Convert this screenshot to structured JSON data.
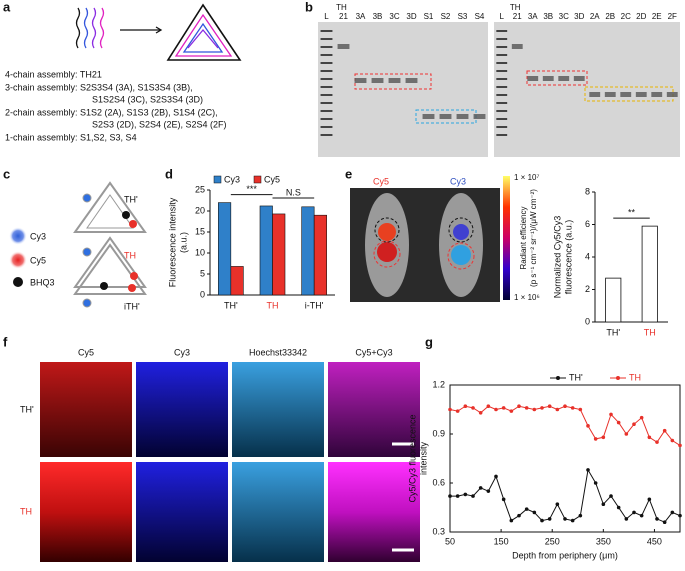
{
  "panel_labels": [
    "a",
    "b",
    "c",
    "d",
    "e",
    "f",
    "g"
  ],
  "panel_a": {
    "lines": [
      "4-chain assembly: TH21",
      "3-chain assembly: S2S3S4 (3A), S1S3S4 (3B),",
      "S1S2S4 (3C), S2S3S4 (3D)",
      "2-chain assembly: S1S2 (2A), S1S3 (2B), S1S4 (2C),",
      "S2S3 (2D), S2S4 (2E), S2S4 (2F)",
      "1-chain assembly: S1,S2, S3, S4"
    ]
  },
  "panel_b": {
    "left_gel": {
      "header": "TH",
      "lanes": [
        "L",
        "21",
        "3A",
        "3B",
        "3C",
        "3D",
        "S1",
        "S2",
        "S3",
        "S4"
      ]
    },
    "right_gel": {
      "header": "TH",
      "lanes": [
        "L",
        "21",
        "3A",
        "3B",
        "3C",
        "3D",
        "2A",
        "2B",
        "2C",
        "2D",
        "2E",
        "2F"
      ]
    }
  },
  "panel_c": {
    "labels": [
      "TH'",
      "TH",
      "iTH'"
    ],
    "legend": [
      "Cy3",
      "Cy5",
      "BHQ3"
    ]
  },
  "panel_e": {
    "image_labels": [
      "Cy5",
      "Cy3"
    ],
    "colorbar_max": "1 × 10⁷",
    "colorbar_min": "1 × 10⁶",
    "colorbar_label": [
      "Radiant efficiency",
      "(p s⁻¹ cm⁻² sr⁻¹)/(μW cm⁻²)"
    ]
  },
  "panel_f": {
    "columns": [
      "Cy5",
      "Cy3",
      "Hoechst33342",
      "Cy5+Cy3"
    ],
    "rows": [
      "TH'",
      "TH"
    ]
  },
  "chart_data": [
    {
      "type": "bar",
      "categories": [
        "TH'",
        "TH",
        "i-TH'"
      ],
      "category_colors": [
        "#111111",
        "#e8312a",
        "#111111"
      ],
      "series": [
        {
          "name": "Cy3",
          "color": "#2f80c9",
          "values": [
            22,
            21.2,
            21
          ]
        },
        {
          "name": "Cy5",
          "color": "#e8312a",
          "values": [
            6.8,
            19.3,
            19
          ]
        }
      ],
      "ylabel": [
        "Fluorescence intensity",
        "(a.u.)"
      ],
      "ylim": [
        0,
        25
      ],
      "yticks": [
        0,
        5,
        10,
        15,
        20,
        25
      ],
      "annotations": [
        "***",
        "N.S"
      ]
    },
    {
      "type": "bar",
      "categories": [
        "TH'",
        "TH"
      ],
      "category_colors": [
        "#111111",
        "#e8312a"
      ],
      "values": [
        2.7,
        5.9
      ],
      "color": "#ffffff",
      "ylabel": [
        "Normalized Cy5/Cy3",
        "fluorescence (a.u.)"
      ],
      "ylim": [
        0,
        8
      ],
      "yticks": [
        0,
        2,
        4,
        6,
        8
      ],
      "annotations": [
        "**"
      ]
    },
    {
      "type": "line",
      "xlabel": "Depth from periphery (μm)",
      "ylabel": [
        "Cy5/Cy3 fluorescence",
        "intensity"
      ],
      "x": [
        50,
        65,
        80,
        95,
        110,
        125,
        140,
        155,
        170,
        185,
        200,
        215,
        230,
        245,
        260,
        275,
        290,
        305,
        320,
        335,
        350,
        365,
        380,
        395,
        410,
        425,
        440,
        455,
        470,
        485,
        500
      ],
      "series": [
        {
          "name": "TH'",
          "color": "#111111",
          "values": [
            0.52,
            0.52,
            0.53,
            0.52,
            0.57,
            0.55,
            0.64,
            0.5,
            0.37,
            0.4,
            0.44,
            0.42,
            0.37,
            0.38,
            0.47,
            0.38,
            0.37,
            0.4,
            0.68,
            0.6,
            0.47,
            0.52,
            0.45,
            0.38,
            0.42,
            0.4,
            0.5,
            0.38,
            0.36,
            0.42,
            0.4
          ]
        },
        {
          "name": "TH",
          "color": "#e8312a",
          "values": [
            1.05,
            1.04,
            1.07,
            1.06,
            1.03,
            1.07,
            1.05,
            1.06,
            1.04,
            1.07,
            1.06,
            1.05,
            1.06,
            1.07,
            1.05,
            1.07,
            1.06,
            1.05,
            0.95,
            0.87,
            0.88,
            1.02,
            0.97,
            0.9,
            0.96,
            1.0,
            0.88,
            0.85,
            0.92,
            0.86,
            0.83
          ]
        }
      ],
      "xlim": [
        50,
        500
      ],
      "xticks": [
        50,
        150,
        250,
        350,
        450
      ],
      "ylim": [
        0.3,
        1.2
      ],
      "yticks": [
        0.3,
        0.6,
        0.9,
        1.2
      ]
    }
  ]
}
